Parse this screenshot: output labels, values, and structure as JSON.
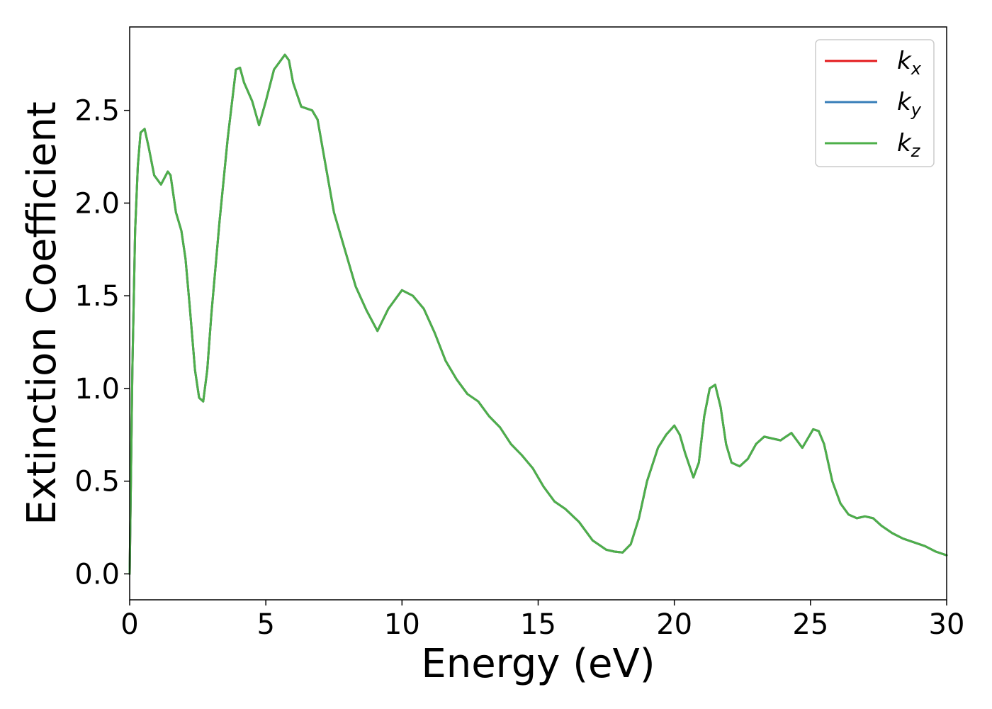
{
  "chart_data": {
    "type": "line",
    "title": "",
    "xlabel": "Energy (eV)",
    "ylabel": "Extinction Coefficient",
    "xlim": [
      0,
      30
    ],
    "ylim": [
      -0.14,
      2.95
    ],
    "xticks": [
      0,
      5,
      10,
      15,
      20,
      25,
      30
    ],
    "yticks": [
      0.0,
      0.5,
      1.0,
      1.5,
      2.0,
      2.5
    ],
    "xtick_labels": [
      "0",
      "5",
      "10",
      "15",
      "20",
      "25",
      "30"
    ],
    "ytick_labels": [
      "0.0",
      "0.5",
      "1.0",
      "1.5",
      "2.0",
      "2.5"
    ],
    "grid": false,
    "legend": {
      "placement": "top-right",
      "entries": [
        {
          "base": "k",
          "sub": "x",
          "color": "#e41a1c"
        },
        {
          "base": "k",
          "sub": "y",
          "color": "#377eb8"
        },
        {
          "base": "k",
          "sub": "z",
          "color": "#4daf4a"
        }
      ]
    },
    "x": [
      0.0,
      0.1,
      0.2,
      0.3,
      0.4,
      0.55,
      0.7,
      0.9,
      1.15,
      1.4,
      1.5,
      1.7,
      1.9,
      2.05,
      2.2,
      2.4,
      2.55,
      2.7,
      2.85,
      3.0,
      3.3,
      3.6,
      3.9,
      4.05,
      4.2,
      4.5,
      4.75,
      5.0,
      5.3,
      5.7,
      5.85,
      6.0,
      6.3,
      6.7,
      6.9,
      7.2,
      7.5,
      7.9,
      8.3,
      8.7,
      9.1,
      9.5,
      10.0,
      10.4,
      10.8,
      11.2,
      11.6,
      12.0,
      12.4,
      12.8,
      13.2,
      13.6,
      14.0,
      14.4,
      14.8,
      15.2,
      15.6,
      16.0,
      16.5,
      17.0,
      17.5,
      17.8,
      18.1,
      18.4,
      18.7,
      19.0,
      19.4,
      19.7,
      20.0,
      20.2,
      20.4,
      20.7,
      20.9,
      21.1,
      21.3,
      21.5,
      21.7,
      21.9,
      22.1,
      22.4,
      22.7,
      23.0,
      23.3,
      23.6,
      23.9,
      24.1,
      24.3,
      24.5,
      24.7,
      24.9,
      25.1,
      25.3,
      25.5,
      25.8,
      26.1,
      26.4,
      26.7,
      27.0,
      27.3,
      27.6,
      28.0,
      28.4,
      28.8,
      29.2,
      29.6,
      30.0
    ],
    "series": [
      {
        "name": "kx",
        "color": "#e41a1c",
        "values": [
          0.0,
          1.1,
          1.85,
          2.2,
          2.38,
          2.4,
          2.3,
          2.15,
          2.1,
          2.17,
          2.15,
          1.95,
          1.85,
          1.7,
          1.45,
          1.1,
          0.95,
          0.93,
          1.1,
          1.4,
          1.9,
          2.35,
          2.72,
          2.73,
          2.65,
          2.55,
          2.42,
          2.55,
          2.72,
          2.8,
          2.77,
          2.65,
          2.52,
          2.5,
          2.45,
          2.2,
          1.95,
          1.75,
          1.55,
          1.42,
          1.31,
          1.43,
          1.53,
          1.5,
          1.43,
          1.3,
          1.15,
          1.05,
          0.97,
          0.93,
          0.85,
          0.79,
          0.7,
          0.64,
          0.57,
          0.47,
          0.39,
          0.35,
          0.28,
          0.18,
          0.13,
          0.12,
          0.115,
          0.16,
          0.3,
          0.5,
          0.68,
          0.75,
          0.8,
          0.75,
          0.65,
          0.52,
          0.6,
          0.85,
          1.0,
          1.02,
          0.9,
          0.7,
          0.6,
          0.58,
          0.62,
          0.7,
          0.74,
          0.73,
          0.72,
          0.74,
          0.76,
          0.72,
          0.68,
          0.73,
          0.78,
          0.77,
          0.7,
          0.5,
          0.38,
          0.32,
          0.3,
          0.31,
          0.3,
          0.26,
          0.22,
          0.19,
          0.17,
          0.15,
          0.12,
          0.1
        ]
      },
      {
        "name": "ky",
        "color": "#377eb8",
        "values": [
          0.0,
          1.1,
          1.85,
          2.2,
          2.38,
          2.4,
          2.3,
          2.15,
          2.1,
          2.17,
          2.15,
          1.95,
          1.85,
          1.7,
          1.45,
          1.1,
          0.95,
          0.93,
          1.1,
          1.4,
          1.9,
          2.35,
          2.72,
          2.73,
          2.65,
          2.55,
          2.42,
          2.55,
          2.72,
          2.8,
          2.77,
          2.65,
          2.52,
          2.5,
          2.45,
          2.2,
          1.95,
          1.75,
          1.55,
          1.42,
          1.31,
          1.43,
          1.53,
          1.5,
          1.43,
          1.3,
          1.15,
          1.05,
          0.97,
          0.93,
          0.85,
          0.79,
          0.7,
          0.64,
          0.57,
          0.47,
          0.39,
          0.35,
          0.28,
          0.18,
          0.13,
          0.12,
          0.115,
          0.16,
          0.3,
          0.5,
          0.68,
          0.75,
          0.8,
          0.75,
          0.65,
          0.52,
          0.6,
          0.85,
          1.0,
          1.02,
          0.9,
          0.7,
          0.6,
          0.58,
          0.62,
          0.7,
          0.74,
          0.73,
          0.72,
          0.74,
          0.76,
          0.72,
          0.68,
          0.73,
          0.78,
          0.77,
          0.7,
          0.5,
          0.38,
          0.32,
          0.3,
          0.31,
          0.3,
          0.26,
          0.22,
          0.19,
          0.17,
          0.15,
          0.12,
          0.1
        ]
      },
      {
        "name": "kz",
        "color": "#4daf4a",
        "values": [
          0.0,
          1.1,
          1.85,
          2.2,
          2.38,
          2.4,
          2.3,
          2.15,
          2.1,
          2.17,
          2.15,
          1.95,
          1.85,
          1.7,
          1.45,
          1.1,
          0.95,
          0.93,
          1.1,
          1.4,
          1.9,
          2.35,
          2.72,
          2.73,
          2.65,
          2.55,
          2.42,
          2.55,
          2.72,
          2.8,
          2.77,
          2.65,
          2.52,
          2.5,
          2.45,
          2.2,
          1.95,
          1.75,
          1.55,
          1.42,
          1.31,
          1.43,
          1.53,
          1.5,
          1.43,
          1.3,
          1.15,
          1.05,
          0.97,
          0.93,
          0.85,
          0.79,
          0.7,
          0.64,
          0.57,
          0.47,
          0.39,
          0.35,
          0.28,
          0.18,
          0.13,
          0.12,
          0.115,
          0.16,
          0.3,
          0.5,
          0.68,
          0.75,
          0.8,
          0.75,
          0.65,
          0.52,
          0.6,
          0.85,
          1.0,
          1.02,
          0.9,
          0.7,
          0.6,
          0.58,
          0.62,
          0.7,
          0.74,
          0.73,
          0.72,
          0.74,
          0.76,
          0.72,
          0.68,
          0.73,
          0.78,
          0.77,
          0.7,
          0.5,
          0.38,
          0.32,
          0.3,
          0.31,
          0.3,
          0.26,
          0.22,
          0.19,
          0.17,
          0.15,
          0.12,
          0.1
        ]
      }
    ]
  }
}
